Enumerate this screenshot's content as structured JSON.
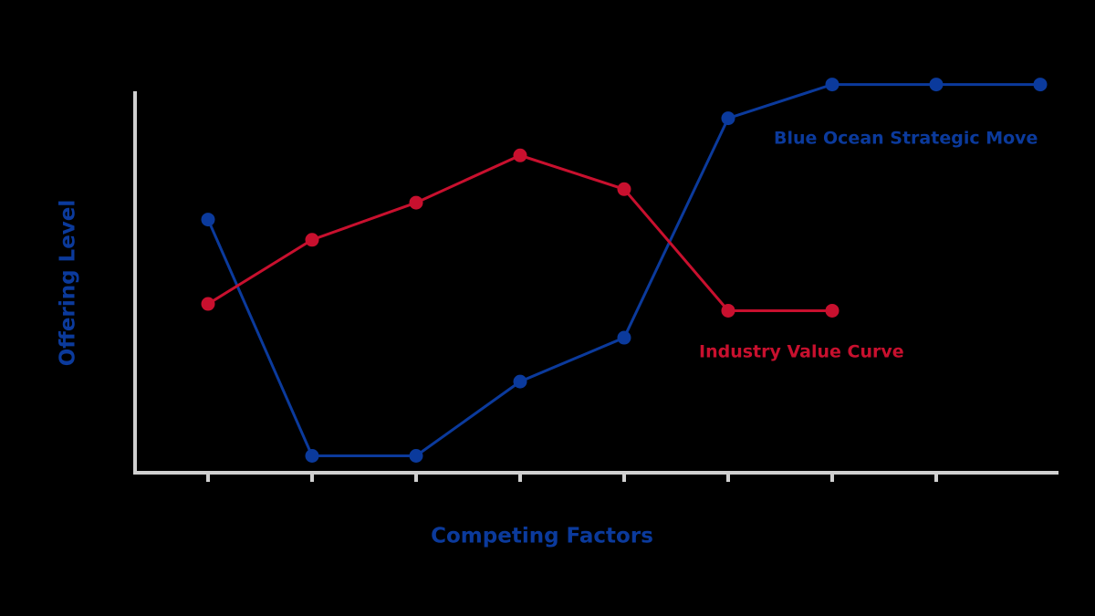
{
  "chart_data": {
    "type": "line",
    "x_label": "Competing Factors",
    "y_label": "Offering Level",
    "categories": [
      null,
      null,
      null,
      null,
      null,
      null,
      null,
      null,
      null
    ],
    "ylim": [
      -0.5,
      10.8
    ],
    "series": [
      {
        "name": "Blue Ocean Strategic Move",
        "color": "#0b3a9c",
        "values": [
          7,
          0,
          0,
          2.2,
          3.5,
          10,
          11,
          11,
          11
        ]
      },
      {
        "name": "Industry Value Curve",
        "color": "#c8102e",
        "values": [
          4.5,
          6.4,
          7.5,
          8.9,
          7.9,
          4.3,
          4.3,
          null,
          null
        ]
      }
    ]
  }
}
